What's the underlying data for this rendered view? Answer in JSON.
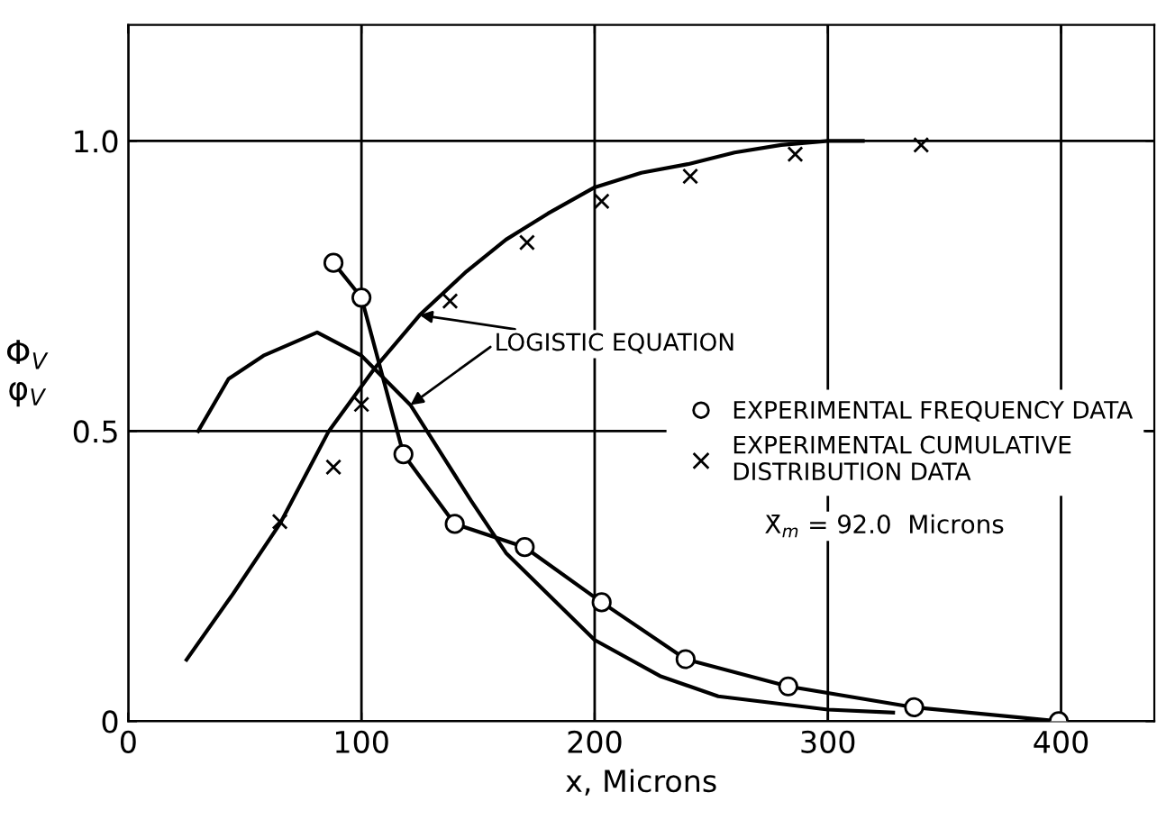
{
  "chart_data": {
    "type": "scatter",
    "xlabel": "x, Microns",
    "ylabel": "Φ$_{V}$\nφ$_{V}$",
    "xlim": [
      0,
      440
    ],
    "ylim": [
      0,
      1.2
    ],
    "xticks": [
      0,
      100,
      200,
      300,
      400
    ],
    "yticks": [
      0,
      0.5,
      {
        "value": 1.0,
        "label": "1.0"
      }
    ],
    "grid": true,
    "legend": "center right",
    "series": [
      {
        "type": "line",
        "color": "#000000",
        "marker": "none",
        "x": [
          25,
          45,
          65,
          86,
          106,
          125,
          145,
          162,
          180,
          200,
          220,
          240,
          260,
          280,
          300,
          315
        ],
        "values": [
          0.106,
          0.22,
          0.34,
          0.5,
          0.61,
          0.7,
          0.775,
          0.83,
          0.875,
          0.92,
          0.945,
          0.96,
          0.98,
          0.993,
          1.0,
          1.0
        ]
      },
      {
        "type": "line",
        "color": "#000000",
        "marker": "none",
        "x": [
          30,
          43,
          58,
          81,
          100,
          121,
          147,
          162,
          200,
          228,
          253,
          300,
          328
        ],
        "values": [
          0.5,
          0.59,
          0.63,
          0.67,
          0.63,
          0.545,
          0.38,
          0.29,
          0.14,
          0.078,
          0.043,
          0.02,
          0.015
        ]
      },
      {
        "type": "line",
        "name": "EXPERIMENTAL FREQUENCY DATA",
        "color": "#000000",
        "marker": "circle",
        "x": [
          88,
          100,
          118,
          140,
          170,
          203,
          239,
          283,
          337,
          399
        ],
        "values": [
          0.79,
          0.73,
          0.46,
          0.34,
          0.3,
          0.205,
          0.107,
          0.06,
          0.024,
          0.0
        ]
      },
      {
        "name": "EXPERIMENTAL CUMULATIVE\nDISTRIBUTION DATA",
        "color": "#000000",
        "marker": "cross",
        "x": [
          65,
          88,
          100,
          138,
          171,
          203,
          241,
          286,
          340
        ],
        "values": [
          0.344,
          0.438,
          0.546,
          0.724,
          0.825,
          0.896,
          0.939,
          0.977,
          0.993
        ]
      }
    ],
    "annotations": [
      {
        "text": "LOGISTIC EQUATION",
        "x": 125,
        "y": 0.7
      },
      "X̄$_{m}$ = 92.0  Microns"
    ]
  }
}
